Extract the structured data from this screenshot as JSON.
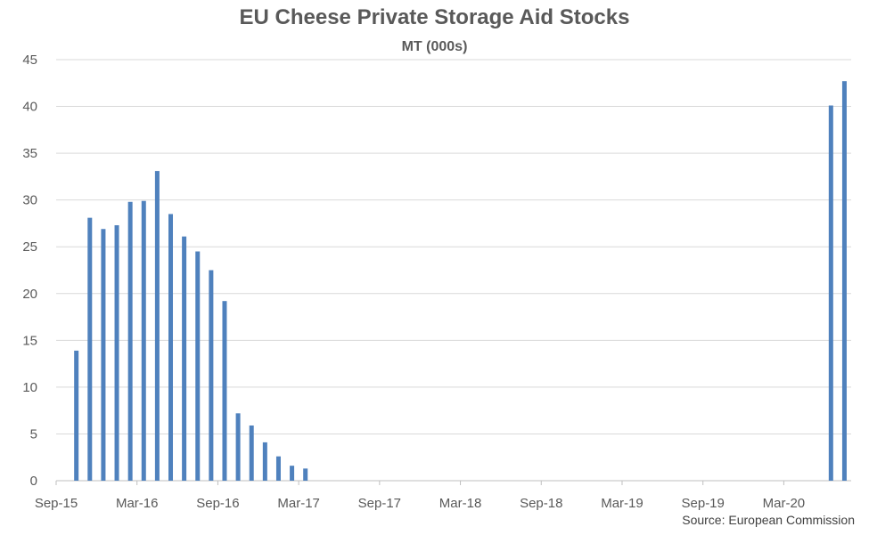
{
  "chart_data": {
    "type": "bar",
    "title": "EU Cheese Private Storage Aid Stocks",
    "subtitle": "MT (000s)",
    "xlabel": "",
    "ylabel": "",
    "ylim": [
      0,
      45
    ],
    "yticks": [
      0,
      5,
      10,
      15,
      20,
      25,
      30,
      35,
      40,
      45
    ],
    "xtick_labels": [
      "Sep-15",
      "Mar-16",
      "Sep-16",
      "Mar-17",
      "Sep-17",
      "Mar-18",
      "Sep-18",
      "Mar-19",
      "Sep-19",
      "Mar-20"
    ],
    "categories": [
      "Sep-15",
      "Oct-15",
      "Nov-15",
      "Dec-15",
      "Jan-16",
      "Feb-16",
      "Mar-16",
      "Apr-16",
      "May-16",
      "Jun-16",
      "Jul-16",
      "Aug-16",
      "Sep-16",
      "Oct-16",
      "Nov-16",
      "Dec-16",
      "Jan-17",
      "Feb-17",
      "Mar-17",
      "Apr-17",
      "May-17",
      "Jun-17",
      "Jul-17",
      "Aug-17",
      "Sep-17",
      "Oct-17",
      "Nov-17",
      "Dec-17",
      "Jan-18",
      "Feb-18",
      "Mar-18",
      "Apr-18",
      "May-18",
      "Jun-18",
      "Jul-18",
      "Aug-18",
      "Sep-18",
      "Oct-18",
      "Nov-18",
      "Dec-18",
      "Jan-19",
      "Feb-19",
      "Mar-19",
      "Apr-19",
      "May-19",
      "Jun-19",
      "Jul-19",
      "Aug-19",
      "Sep-19",
      "Oct-19",
      "Nov-19",
      "Dec-19",
      "Jan-20",
      "Feb-20",
      "Mar-20",
      "Apr-20",
      "May-20",
      "Jun-20",
      "Jul-20"
    ],
    "values": [
      0,
      13.9,
      28.1,
      26.9,
      27.3,
      29.8,
      29.9,
      33.1,
      28.5,
      26.1,
      24.5,
      22.5,
      19.2,
      7.2,
      5.9,
      4.1,
      2.6,
      1.6,
      1.3,
      0,
      0,
      0,
      0,
      0,
      0,
      0,
      0,
      0,
      0,
      0,
      0,
      0,
      0,
      0,
      0,
      0,
      0,
      0,
      0,
      0,
      0,
      0,
      0,
      0,
      0,
      0,
      0,
      0,
      0,
      0,
      0,
      0,
      0,
      0,
      0,
      0,
      0,
      40.1,
      42.7
    ],
    "grid": true,
    "bar_color": "#4F81BD",
    "source": "Source: European Commission"
  }
}
